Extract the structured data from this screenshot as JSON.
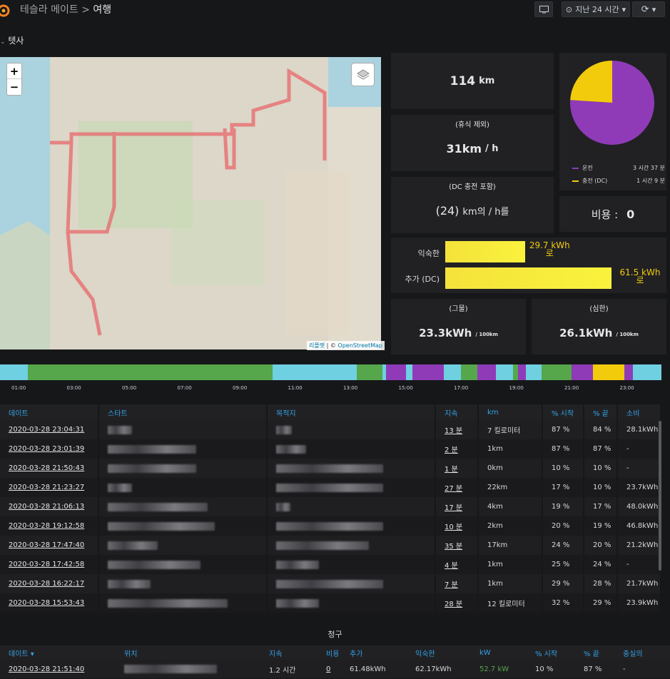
{
  "header": {
    "breadcrumb_parent": "테슬라 메이트",
    "breadcrumb_sep": ">",
    "breadcrumb_current": "여행",
    "time_range": "지난 24 시간"
  },
  "row_title": "텟사",
  "stats": {
    "distance_value": "114",
    "distance_unit": "km",
    "speed_title": "(휴식 제외)",
    "speed_value": "31km",
    "speed_unit": "/ h",
    "speed2_title": "(DC 충전 포함)",
    "speed2_value": "(24)",
    "speed2_unit": "km의 / h를",
    "cost_label": "비용 :",
    "cost_value": "0"
  },
  "pie": {
    "legend": [
      {
        "label": "운전",
        "value": "3 시간 37 분",
        "color": "#8f3bb8"
      },
      {
        "label": "충전 (DC)",
        "value": "1 시간 9 분",
        "color": "#f2cc0c"
      }
    ],
    "fractions": [
      0.76,
      0.24
    ]
  },
  "energy_bars": [
    {
      "label": "익숙한",
      "value": "29.7 kWh",
      "suffix": "로",
      "fraction": 0.48
    },
    {
      "label": "추가 (DC)",
      "value": "61.5 kWh",
      "suffix": "로",
      "fraction": 1.0
    }
  ],
  "efficiency": {
    "gross_title": "(그물)",
    "gross_value": "23.3kWh",
    "gross_unit": "/ 100km",
    "net_title": "(심한)",
    "net_value": "26.1kWh",
    "net_unit": "/ 100km"
  },
  "map": {
    "attribution_a": "리플렛",
    "attribution_sep": " | © ",
    "attribution_b": "OpenStreetMap"
  },
  "timeline": {
    "ticks": [
      "01:00",
      "03:00",
      "05:00",
      "07:00",
      "09:00",
      "11:00",
      "13:00",
      "15:00",
      "17:00",
      "19:00",
      "21:00",
      "23:00"
    ],
    "colors": {
      "park": "#6ed0e0",
      "drive": "#8f3bb8",
      "online": "#56a64b",
      "charge": "#f2cc0c"
    }
  },
  "drives": {
    "headers": [
      "데이트",
      "스타트",
      "목적지",
      "지속",
      "km",
      "% 시작",
      "% 끝",
      "소비"
    ],
    "rows": [
      {
        "date": "2020-03-28 23:04:31",
        "dur": "13 분",
        "km": "7 킬로미터",
        "start": "87 %",
        "end": "84 %",
        "cons": "28.1kWh"
      },
      {
        "date": "2020-03-28 23:01:39",
        "dur": "2 분",
        "km": "1km",
        "start": "87 %",
        "end": "87 %",
        "cons": "-"
      },
      {
        "date": "2020-03-28 21:50:43",
        "dur": "1 분",
        "km": "0km",
        "start": "10 %",
        "end": "10 %",
        "cons": "-"
      },
      {
        "date": "2020-03-28 21:23:27",
        "dur": "27 분",
        "km": "22km",
        "start": "17 %",
        "end": "10 %",
        "cons": "23.7kWh"
      },
      {
        "date": "2020-03-28 21:06:13",
        "dur": "17 분",
        "km": "4km",
        "start": "19 %",
        "end": "17 %",
        "cons": "48.0kWh"
      },
      {
        "date": "2020-03-28 19:12:58",
        "dur": "10 분",
        "km": "2km",
        "start": "20 %",
        "end": "19 %",
        "cons": "46.8kWh"
      },
      {
        "date": "2020-03-28 17:47:40",
        "dur": "35 분",
        "km": "17km",
        "start": "24 %",
        "end": "20 %",
        "cons": "21.2kWh"
      },
      {
        "date": "2020-03-28 17:42:58",
        "dur": "4 분",
        "km": "1km",
        "start": "25 %",
        "end": "24 %",
        "cons": "-"
      },
      {
        "date": "2020-03-28 16:22:17",
        "dur": "7 분",
        "km": "1km",
        "start": "29 %",
        "end": "28 %",
        "cons": "21.7kWh"
      },
      {
        "date": "2020-03-28 15:53:43",
        "dur": "28 분",
        "km": "12 킬로미터",
        "start": "32 %",
        "end": "29 %",
        "cons": "23.9kWh"
      }
    ]
  },
  "charges": {
    "title": "청구",
    "headers": [
      "데이트",
      "위치",
      "지속",
      "비용",
      "추가",
      "익숙한",
      "kW",
      "% 시작",
      "% 끝",
      "충실의"
    ],
    "row": {
      "date": "2020-03-28 21:51:40",
      "dur": "1.2 시간",
      "cost": "0",
      "added": "61.48kWh",
      "used": "62.17kWh",
      "kw": "52.7 kW",
      "start": "10 %",
      "end": "87 %",
      "eff": "-"
    }
  }
}
